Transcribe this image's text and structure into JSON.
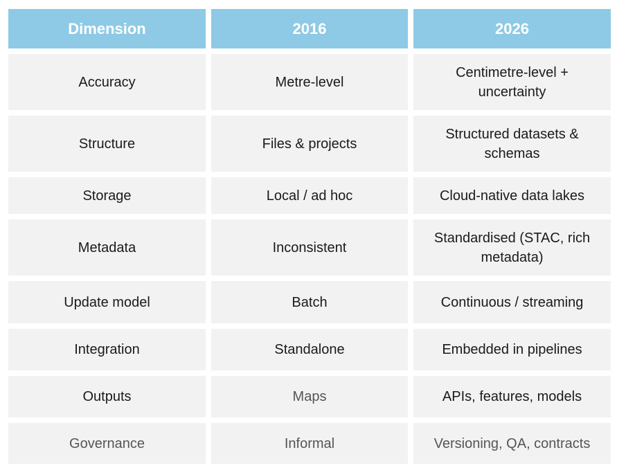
{
  "table": {
    "header": [
      "Dimension",
      "2016",
      "2026"
    ],
    "rows": [
      [
        "Accuracy",
        "Metre-level",
        "Centimetre-level + uncertainty"
      ],
      [
        "Structure",
        "Files & projects",
        "Structured datasets & schemas"
      ],
      [
        "Storage",
        "Local / ad hoc",
        "Cloud-native data lakes"
      ],
      [
        "Metadata",
        "Inconsistent",
        "Standardised (STAC, rich metadata)"
      ],
      [
        "Update model",
        "Batch",
        "Continuous / streaming"
      ],
      [
        "Integration",
        "Standalone",
        "Embedded in pipelines"
      ],
      [
        "Outputs",
        "Maps",
        "APIs, features, models"
      ],
      [
        "Governance",
        "Informal",
        "Versioning, QA, contracts"
      ]
    ]
  }
}
